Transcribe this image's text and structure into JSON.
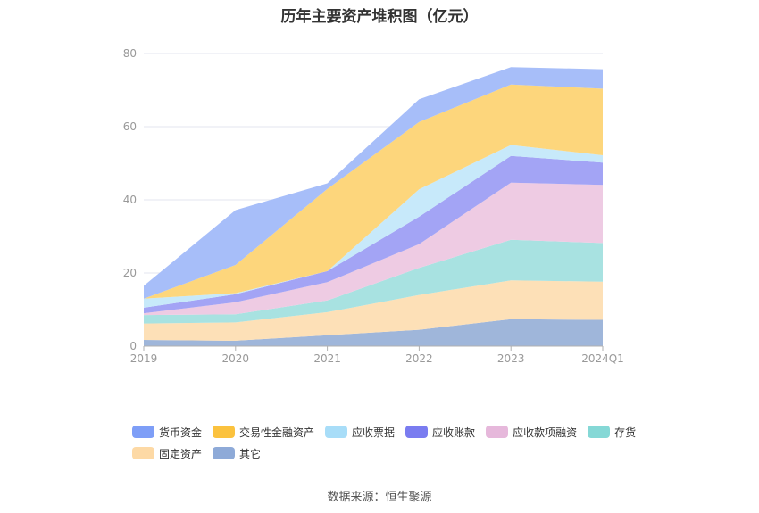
{
  "title": "历年主要资产堆积图（亿元）",
  "source": "数据来源：恒生聚源",
  "chart_data": {
    "type": "area",
    "stacked": true,
    "title": "历年主要资产堆积图（亿元）",
    "categories": [
      "2019",
      "2020",
      "2021",
      "2022",
      "2023",
      "2024Q1"
    ],
    "ylim": [
      0,
      80
    ],
    "yticks": [
      0,
      20,
      40,
      60,
      80
    ],
    "grid": true,
    "legend_position": "bottom",
    "series": [
      {
        "name": "其它",
        "color": "#9fb6da",
        "values": [
          1.7,
          1.5,
          3.0,
          4.5,
          7.4,
          7.2
        ]
      },
      {
        "name": "固定资产",
        "color": "#fde0b7",
        "values": [
          4.5,
          5.0,
          6.3,
          9.5,
          10.6,
          10.4
        ]
      },
      {
        "name": "存货",
        "color": "#a8e2e1",
        "values": [
          2.3,
          2.2,
          3.2,
          7.4,
          11.1,
          10.6
        ]
      },
      {
        "name": "应收款项融资",
        "color": "#eecbe3",
        "values": [
          0.5,
          3.3,
          5.0,
          6.5,
          15.6,
          15.9
        ]
      },
      {
        "name": "应收账款",
        "color": "#a3a4f5",
        "values": [
          1.5,
          2.2,
          3.0,
          7.5,
          7.3,
          6.1
        ]
      },
      {
        "name": "应收票据",
        "color": "#c7e9fa",
        "values": [
          2.5,
          0.3,
          0.0,
          7.5,
          3.0,
          2.0
        ]
      },
      {
        "name": "交易性金融资产",
        "color": "#fdd67c",
        "values": [
          0.0,
          7.7,
          22.5,
          18.4,
          16.5,
          18.2
        ]
      },
      {
        "name": "货币资金",
        "color": "#a7bef9",
        "values": [
          3.5,
          15.0,
          1.5,
          6.2,
          4.8,
          5.3
        ]
      }
    ],
    "legend": [
      {
        "name": "货币资金",
        "color": "#7e9ef7"
      },
      {
        "name": "交易性金融资产",
        "color": "#fbc23e"
      },
      {
        "name": "应收票据",
        "color": "#a8ddf8"
      },
      {
        "name": "应收账款",
        "color": "#7a7cf0"
      },
      {
        "name": "应收款项融资",
        "color": "#e6b8db"
      },
      {
        "name": "存货",
        "color": "#85d8d6"
      },
      {
        "name": "固定资产",
        "color": "#fdd9a5"
      },
      {
        "name": "其它",
        "color": "#8eaad8"
      }
    ]
  }
}
